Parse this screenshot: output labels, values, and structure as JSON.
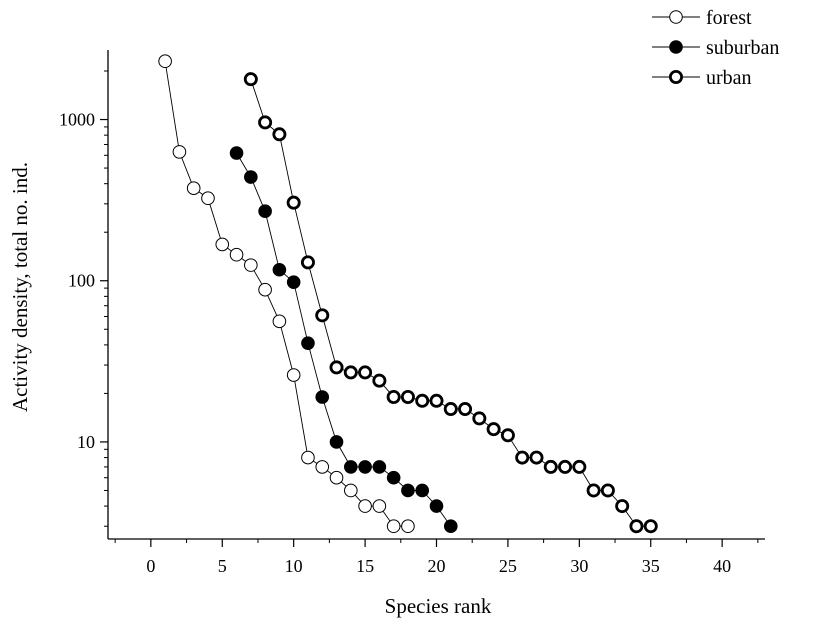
{
  "chart_data": {
    "type": "scatter",
    "title": "",
    "xlabel": "Species rank",
    "ylabel": "Activity density, total no. ind.",
    "xlim": [
      -3,
      43
    ],
    "ylim": [
      2.5,
      2700
    ],
    "yscale": "log",
    "x_ticks": [
      0,
      5,
      10,
      15,
      20,
      25,
      30,
      35,
      40
    ],
    "x_tick_labels": [
      "0",
      "5",
      "10",
      "15",
      "20",
      "25",
      "30",
      "35",
      "40"
    ],
    "y_ticks": [
      10,
      100,
      1000
    ],
    "y_tick_labels": [
      "10",
      "100",
      "1000"
    ],
    "grid": false,
    "legend_position": "top-right",
    "series": [
      {
        "name": "forest",
        "marker": "open-circle",
        "x": [
          1,
          2,
          3,
          4,
          5,
          6,
          7,
          8,
          9,
          10,
          11,
          12,
          13,
          14,
          15,
          16,
          17,
          18
        ],
        "y": [
          2300,
          630,
          375,
          325,
          168,
          145,
          125,
          88,
          56,
          26,
          8,
          7,
          6,
          5,
          4,
          4,
          3,
          3
        ]
      },
      {
        "name": "suburban",
        "marker": "filled-circle",
        "x": [
          6,
          7,
          8,
          9,
          10,
          11,
          12,
          13,
          14,
          15,
          16,
          17,
          18,
          19,
          20,
          21
        ],
        "y": [
          620,
          440,
          270,
          117,
          98,
          41,
          19,
          10,
          7,
          7,
          7,
          6,
          5,
          5,
          4,
          3
        ]
      },
      {
        "name": "urban",
        "marker": "thick-open-circle",
        "x": [
          7,
          8,
          9,
          10,
          11,
          12,
          13,
          14,
          15,
          16,
          17,
          18,
          19,
          20,
          21,
          22,
          23,
          24,
          25,
          26,
          27,
          28,
          29,
          30,
          31,
          32,
          33,
          34,
          35
        ],
        "y": [
          1780,
          960,
          810,
          305,
          130,
          61,
          29,
          27,
          27,
          24,
          19,
          19,
          18,
          18,
          16,
          16,
          14,
          12,
          11,
          8,
          8,
          7,
          7,
          7,
          5,
          5,
          4,
          3,
          3
        ]
      }
    ]
  }
}
